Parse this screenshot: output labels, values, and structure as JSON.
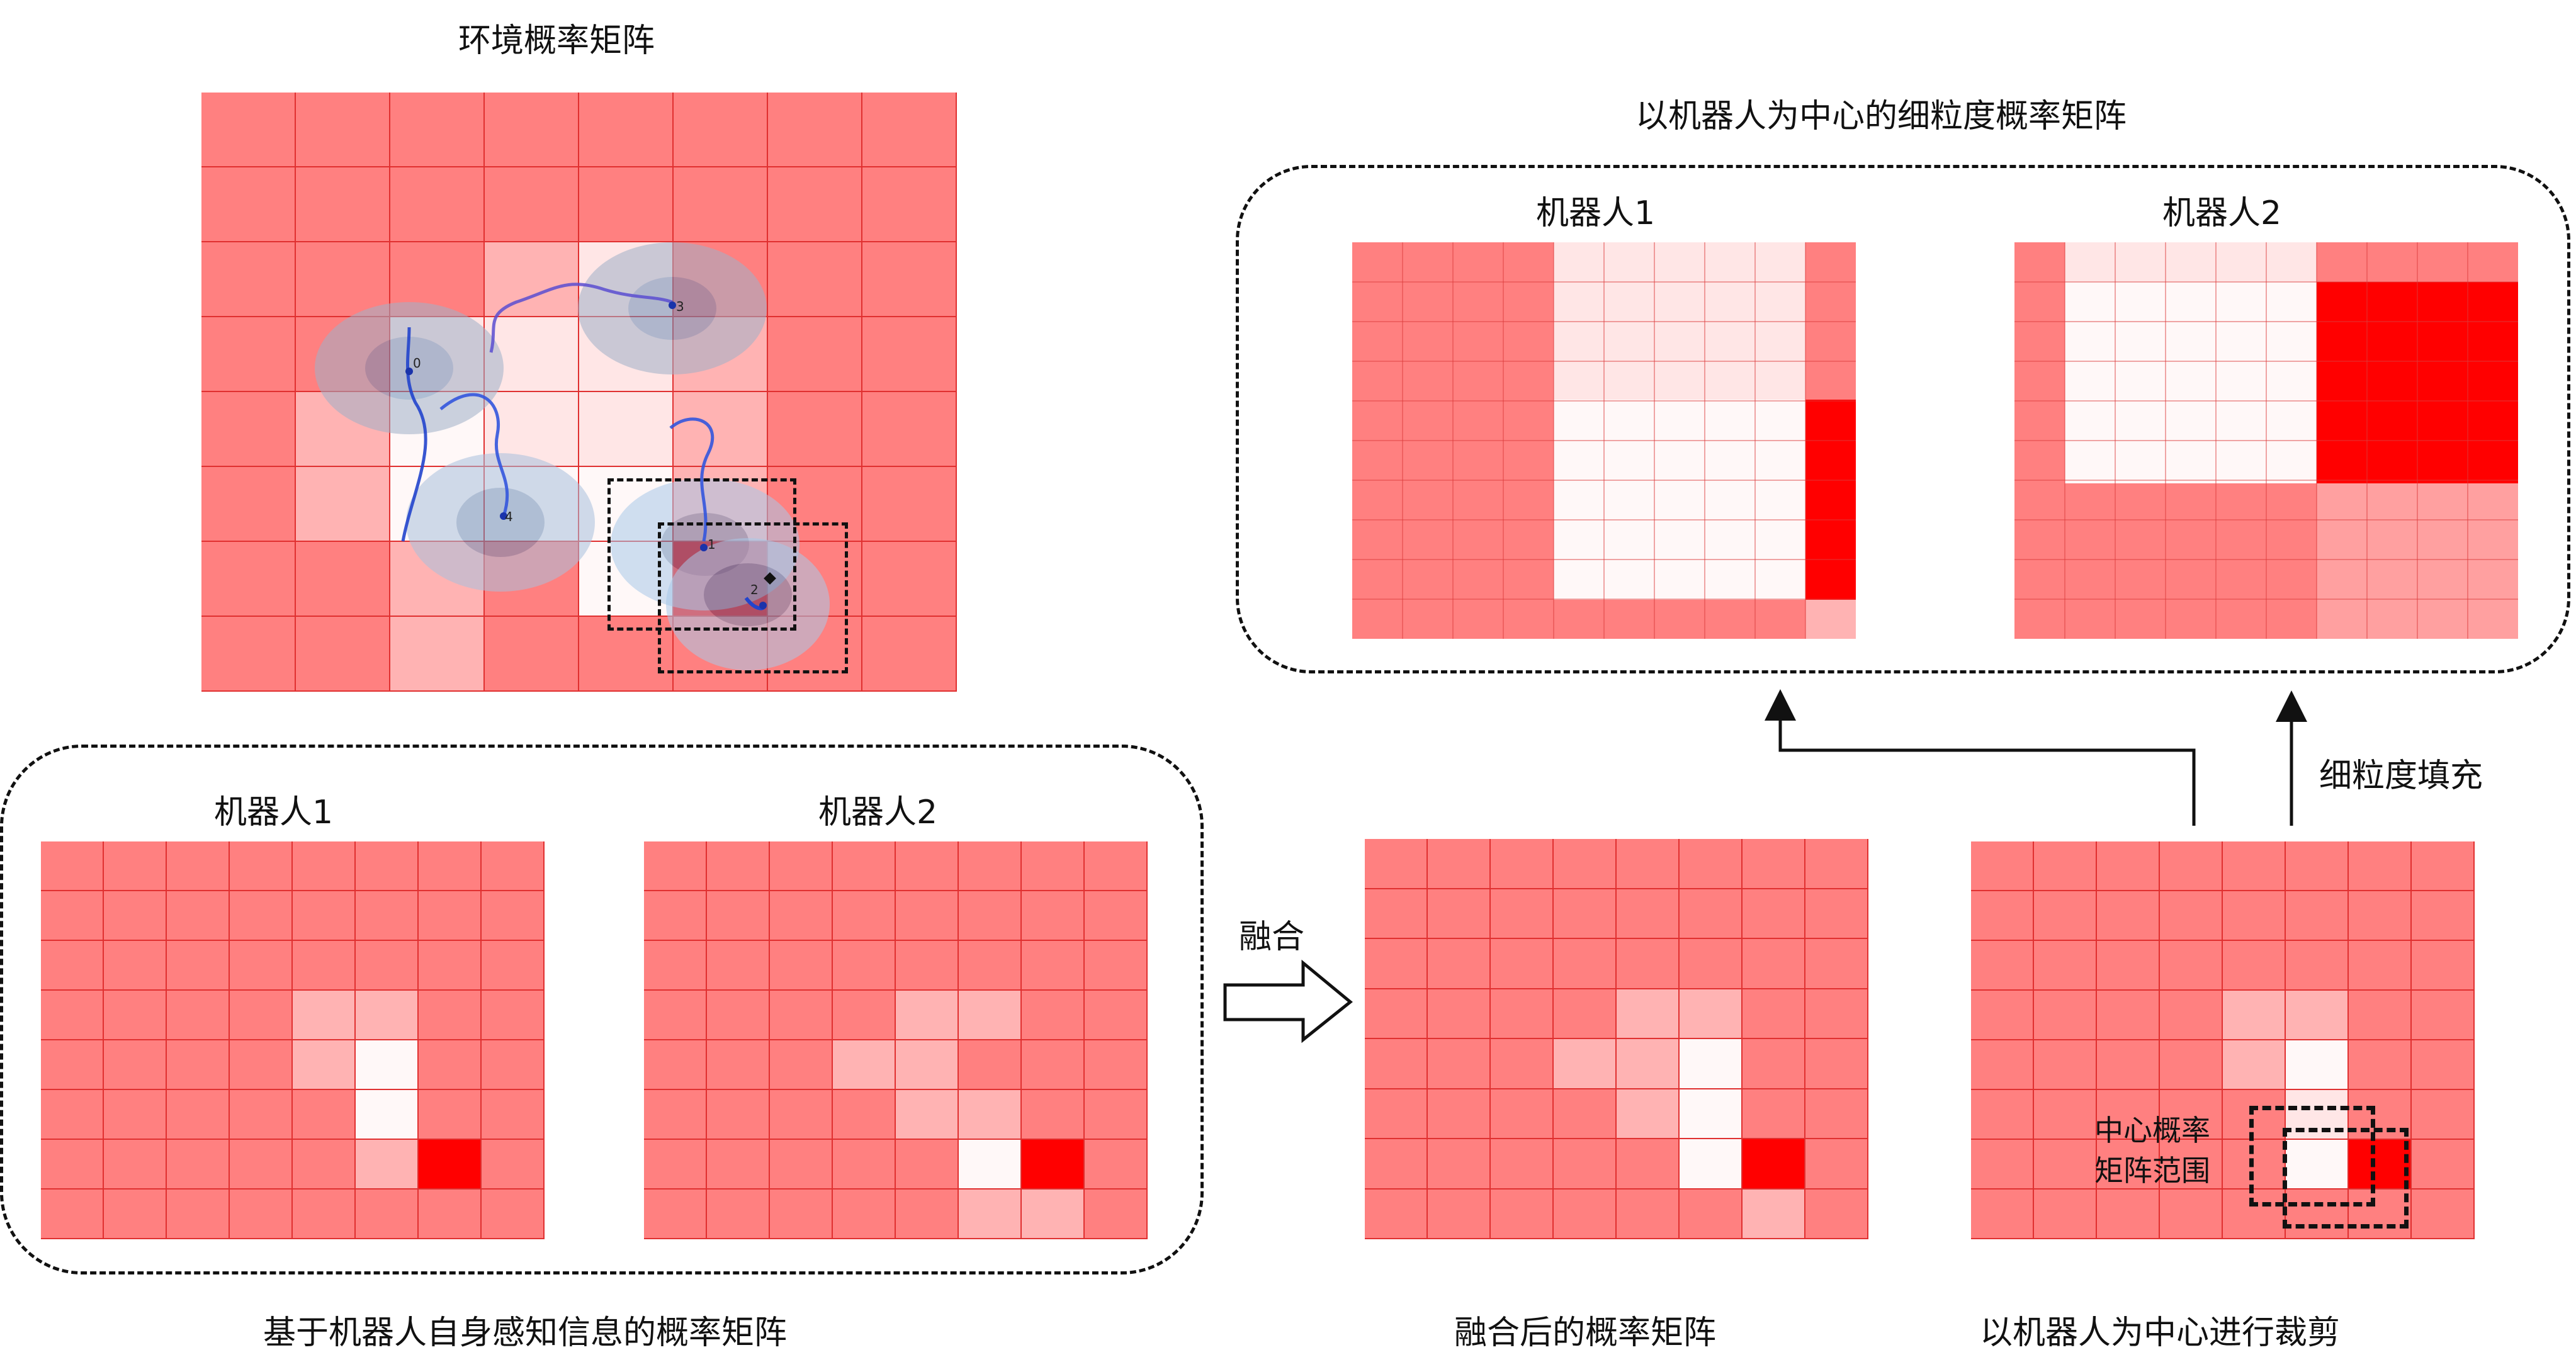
{
  "colors": {
    "low": "#ff8080",
    "mid": "#ffb3b3",
    "high": "#ffe6e6",
    "free": "#fff8f8",
    "obstacle": "#ff0000",
    "grid_line": "#e03030",
    "fine_pink": "#ffcccc"
  },
  "labels": {
    "env_title": "环境概率矩阵",
    "fine_title": "以机器人为中心的细粒度概率矩阵",
    "fine_robot1": "机器人1",
    "fine_robot2": "机器人2",
    "sense_robot1": "机器人1",
    "sense_robot2": "机器人2",
    "sense_caption": "基于机器人自身感知信息的概率矩阵",
    "fuse_arrow": "融合",
    "fused_caption": "融合后的概率矩阵",
    "crop_caption": "以机器人为中心进行裁剪",
    "fine_fill": "细粒度填充",
    "center_range_line1": "中心概率",
    "center_range_line2": "矩阵范围"
  },
  "env_robots": [
    {
      "id": "0"
    },
    {
      "id": "1"
    },
    {
      "id": "2"
    },
    {
      "id": "3"
    },
    {
      "id": "4"
    }
  ],
  "matrices": {
    "env": [
      "LLLLLLLL",
      "LLLLLLLL",
      "LLLMHLLL",
      "LLHHHMLL",
      "LMFHHMLL",
      "LMFFFMLL",
      "LLMLFOLL",
      "LLMLLLLL"
    ],
    "sense1": [
      "LLLLLLLL",
      "LLLLLLLL",
      "LLLLLLLL",
      "LLLLMMLL",
      "LLLLMFLL",
      "LLLLLFLL",
      "LLLLLMOL",
      "LLLLLLLL"
    ],
    "sense2": [
      "LLLLLLLL",
      "LLLLLLLL",
      "LLLLLLLL",
      "LLLLMMLL",
      "LLLMMLLL",
      "LLLLMMLL",
      "LLLLLFOL",
      "LLLLLMML"
    ],
    "fused": [
      "LLLLLLLL",
      "LLLLLLLL",
      "LLLLLLLL",
      "LLLLMMLL",
      "LLLMMFLL",
      "LLLLMFLL",
      "LLLLLFOL",
      "LLLLLLML"
    ],
    "crop": [
      "LLLLLLLL",
      "LLLLLLLL",
      "LLLLLLLL",
      "LLLLMMLL",
      "LLLLMFLL",
      "LLLLLHLL",
      "LLLLLFOL",
      "LLLLLLLL"
    ]
  }
}
